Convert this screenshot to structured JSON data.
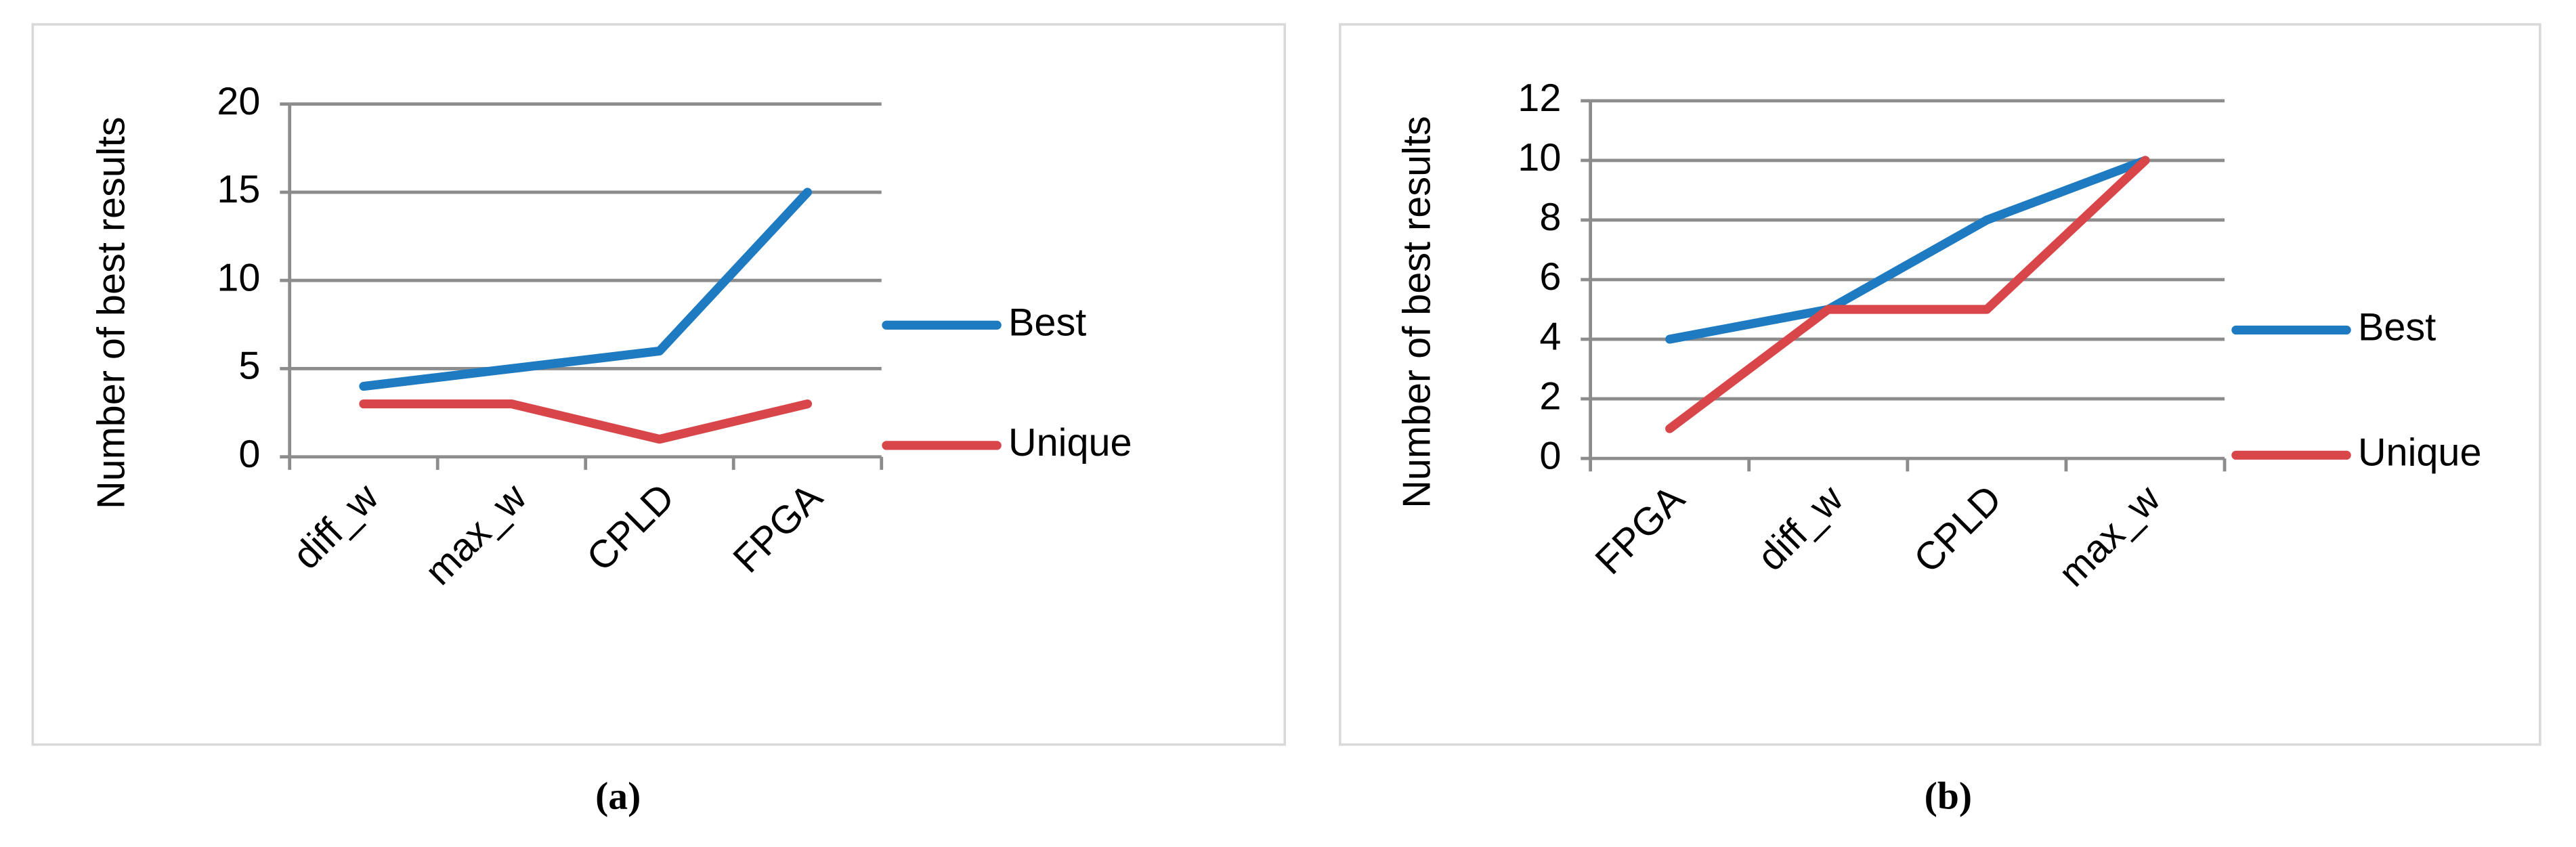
{
  "chart_data": [
    {
      "type": "line",
      "caption": "(a)",
      "y_label": "Number of best results",
      "categories": [
        "diff_w",
        "max_w",
        "CPLD",
        "FPGA"
      ],
      "series": [
        {
          "name": "Best",
          "color": "#1f7bc1",
          "values": [
            4,
            5,
            6,
            15
          ]
        },
        {
          "name": "Unique",
          "color": "#d9464a",
          "values": [
            3,
            3,
            1,
            3
          ]
        }
      ],
      "ylim": [
        0,
        20
      ],
      "yticks": [
        0,
        5,
        10,
        15,
        20
      ],
      "grid": true,
      "legend": "right"
    },
    {
      "type": "line",
      "caption": "(b)",
      "y_label": "Number of best results",
      "categories": [
        "FPGA",
        "diff_w",
        "CPLD",
        "max_w"
      ],
      "series": [
        {
          "name": "Best",
          "color": "#1f7bc1",
          "values": [
            4,
            5,
            8,
            10
          ]
        },
        {
          "name": "Unique",
          "color": "#d9464a",
          "values": [
            1,
            5,
            5,
            10
          ]
        }
      ],
      "ylim": [
        0,
        12
      ],
      "yticks": [
        0,
        2,
        4,
        6,
        8,
        10,
        12
      ],
      "grid": true,
      "legend": "right"
    }
  ]
}
